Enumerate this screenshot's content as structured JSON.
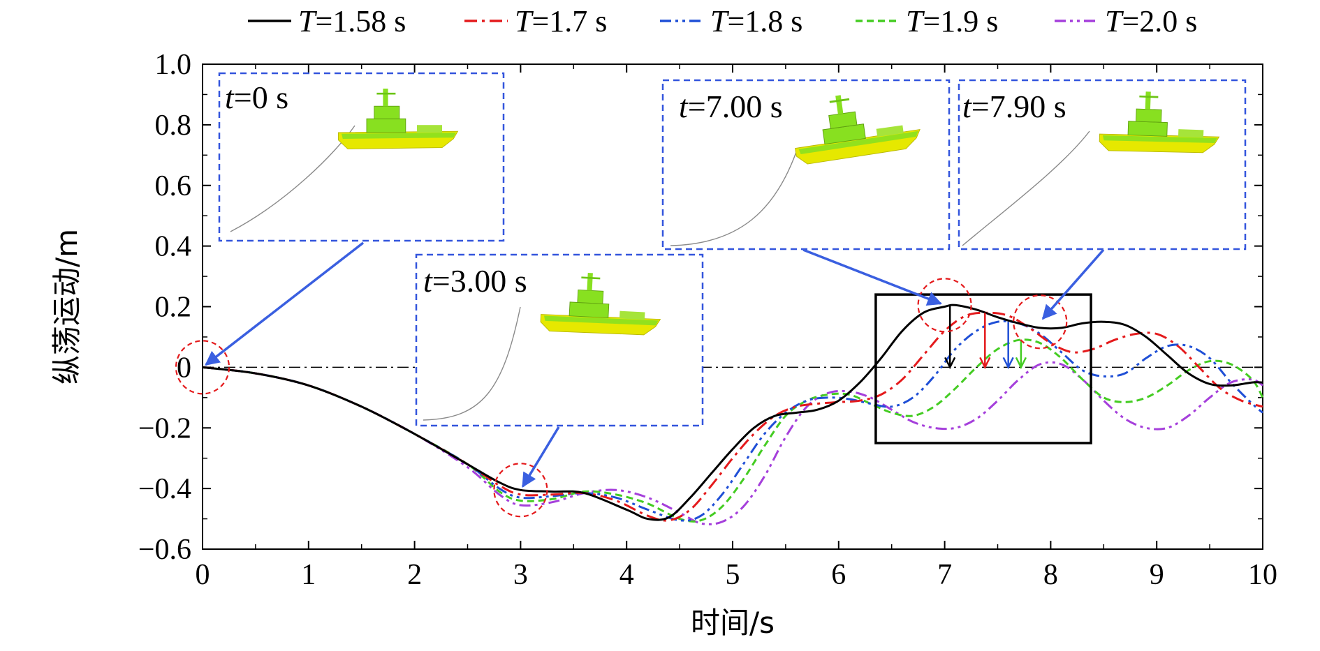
{
  "chart_data": {
    "type": "line",
    "xlabel": "时间/s",
    "ylabel": "纵荡运动/m",
    "xlim": [
      0,
      10
    ],
    "ylim": [
      -0.6,
      1.0
    ],
    "x_ticks": [
      0,
      1,
      2,
      3,
      4,
      5,
      6,
      7,
      8,
      9,
      10
    ],
    "y_ticks": [
      -0.6,
      -0.4,
      -0.2,
      0,
      0.2,
      0.4,
      0.6,
      0.8,
      1.0
    ],
    "y_tick_labels": [
      "−0.6",
      "−0.4",
      "−0.2",
      "0",
      "0.2",
      "0.4",
      "0.6",
      "0.8",
      "1.0"
    ],
    "grid": false,
    "legend_position": "top",
    "series": [
      {
        "name": "T=1.58 s",
        "name_var": "T",
        "name_rest": "=1.58 s",
        "color": "#000000",
        "dash": "solid",
        "x": [
          0,
          0.5,
          1,
          1.5,
          2,
          2.5,
          2.8,
          3,
          3.3,
          3.6,
          4,
          4.2,
          4.4,
          4.6,
          4.8,
          5,
          5.2,
          5.4,
          5.6,
          5.8,
          6,
          6.2,
          6.4,
          6.6,
          6.8,
          7,
          7.1,
          7.3,
          7.5,
          7.7,
          7.9,
          8.1,
          8.3,
          8.5,
          8.7,
          8.9,
          9.1,
          9.3,
          9.5,
          9.7,
          9.9,
          10
        ],
        "y": [
          0,
          -0.02,
          -0.06,
          -0.13,
          -0.22,
          -0.32,
          -0.38,
          -0.405,
          -0.41,
          -0.415,
          -0.47,
          -0.5,
          -0.495,
          -0.43,
          -0.35,
          -0.27,
          -0.2,
          -0.16,
          -0.15,
          -0.14,
          -0.11,
          -0.05,
          0.03,
          0.12,
          0.18,
          0.2,
          0.205,
          0.19,
          0.165,
          0.145,
          0.13,
          0.13,
          0.145,
          0.15,
          0.14,
          0.1,
          0.04,
          -0.02,
          -0.055,
          -0.06,
          -0.05,
          -0.05
        ]
      },
      {
        "name": "T=1.7 s",
        "name_var": "T",
        "name_rest": "=1.7 s",
        "color": "#e41a1c",
        "dash": "dashdot",
        "x": [
          0,
          0.5,
          1,
          1.5,
          2,
          2.5,
          2.8,
          3,
          3.3,
          3.6,
          3.9,
          4.2,
          4.4,
          4.6,
          4.8,
          5,
          5.2,
          5.4,
          5.6,
          5.8,
          6,
          6.2,
          6.4,
          6.6,
          6.8,
          7,
          7.2,
          7.4,
          7.6,
          7.8,
          8,
          8.2,
          8.4,
          8.6,
          8.8,
          9,
          9.2,
          9.4,
          9.6,
          9.8,
          10
        ],
        "y": [
          0,
          -0.02,
          -0.06,
          -0.13,
          -0.22,
          -0.32,
          -0.39,
          -0.42,
          -0.42,
          -0.415,
          -0.44,
          -0.49,
          -0.505,
          -0.47,
          -0.39,
          -0.3,
          -0.22,
          -0.16,
          -0.13,
          -0.12,
          -0.115,
          -0.11,
          -0.09,
          -0.04,
          0.04,
          0.12,
          0.17,
          0.18,
          0.17,
          0.13,
          0.08,
          0.05,
          0.06,
          0.09,
          0.11,
          0.11,
          0.07,
          0.0,
          -0.07,
          -0.11,
          -0.13
        ]
      },
      {
        "name": "T=1.8 s",
        "name_var": "T",
        "name_rest": "=1.8 s",
        "color": "#1f4fd6",
        "dash": "dashdotdot",
        "x": [
          0,
          0.5,
          1,
          1.5,
          2,
          2.5,
          2.8,
          3,
          3.3,
          3.6,
          3.9,
          4.2,
          4.5,
          4.7,
          4.9,
          5.1,
          5.3,
          5.5,
          5.7,
          5.9,
          6.1,
          6.3,
          6.5,
          6.7,
          6.9,
          7.1,
          7.3,
          7.5,
          7.7,
          7.9,
          8.1,
          8.3,
          8.5,
          8.7,
          8.9,
          9.1,
          9.3,
          9.5,
          9.7,
          9.9,
          10
        ],
        "y": [
          0,
          -0.02,
          -0.06,
          -0.13,
          -0.22,
          -0.32,
          -0.4,
          -0.43,
          -0.425,
          -0.415,
          -0.43,
          -0.47,
          -0.505,
          -0.49,
          -0.42,
          -0.32,
          -0.22,
          -0.15,
          -0.11,
          -0.1,
          -0.105,
          -0.12,
          -0.13,
          -0.1,
          -0.03,
          0.06,
          0.12,
          0.15,
          0.145,
          0.11,
          0.05,
          -0.01,
          -0.03,
          -0.02,
          0.03,
          0.07,
          0.07,
          0.03,
          -0.05,
          -0.12,
          -0.15
        ]
      },
      {
        "name": "T=1.9 s",
        "name_var": "T",
        "name_rest": "=1.9 s",
        "color": "#44cc22",
        "dash": "dashed",
        "x": [
          0,
          0.5,
          1,
          1.5,
          2,
          2.5,
          2.8,
          3,
          3.3,
          3.6,
          3.9,
          4.2,
          4.5,
          4.7,
          4.9,
          5.1,
          5.3,
          5.5,
          5.7,
          5.9,
          6.1,
          6.3,
          6.5,
          6.7,
          6.9,
          7.1,
          7.3,
          7.5,
          7.7,
          7.9,
          8.1,
          8.3,
          8.5,
          8.7,
          8.9,
          9.1,
          9.3,
          9.5,
          9.7,
          9.9,
          10
        ],
        "y": [
          0,
          -0.02,
          -0.06,
          -0.13,
          -0.22,
          -0.32,
          -0.41,
          -0.44,
          -0.435,
          -0.41,
          -0.42,
          -0.45,
          -0.5,
          -0.505,
          -0.46,
          -0.37,
          -0.26,
          -0.16,
          -0.11,
          -0.09,
          -0.09,
          -0.12,
          -0.15,
          -0.16,
          -0.13,
          -0.07,
          0.0,
          0.06,
          0.09,
          0.08,
          0.03,
          -0.04,
          -0.1,
          -0.115,
          -0.1,
          -0.06,
          -0.01,
          0.02,
          0.01,
          -0.04,
          -0.1
        ]
      },
      {
        "name": "T=2.0 s",
        "name_var": "T",
        "name_rest": "=2.0 s",
        "color": "#a53fdb",
        "dash": "dashdotdot",
        "x": [
          0,
          0.5,
          1,
          1.5,
          2,
          2.5,
          2.8,
          3,
          3.3,
          3.6,
          3.9,
          4.2,
          4.5,
          4.7,
          4.9,
          5.1,
          5.3,
          5.5,
          5.7,
          5.9,
          6.1,
          6.3,
          6.5,
          6.7,
          6.9,
          7.1,
          7.3,
          7.5,
          7.7,
          7.9,
          8.1,
          8.3,
          8.5,
          8.7,
          8.9,
          9.1,
          9.3,
          9.5,
          9.7,
          9.9,
          10
        ],
        "y": [
          0,
          -0.02,
          -0.06,
          -0.13,
          -0.22,
          -0.33,
          -0.42,
          -0.455,
          -0.445,
          -0.415,
          -0.405,
          -0.43,
          -0.48,
          -0.515,
          -0.51,
          -0.46,
          -0.36,
          -0.23,
          -0.13,
          -0.085,
          -0.08,
          -0.1,
          -0.14,
          -0.18,
          -0.2,
          -0.2,
          -0.17,
          -0.11,
          -0.04,
          0.01,
          0.01,
          -0.04,
          -0.11,
          -0.17,
          -0.2,
          -0.2,
          -0.16,
          -0.1,
          -0.05,
          -0.04,
          -0.06
        ]
      }
    ],
    "zero_line": {
      "y": 0,
      "color": "#000000"
    },
    "snapshots": [
      {
        "label_var": "t",
        "label_rest": "=0 s",
        "time": 0
      },
      {
        "label_var": "t",
        "label_rest": "=3.00 s",
        "time": 3.0
      },
      {
        "label_var": "t",
        "label_rest": "=7.00 s",
        "time": 7.0
      },
      {
        "label_var": "t",
        "label_rest": "=7.90 s",
        "time": 7.9
      }
    ],
    "highlight_box": {
      "x": [
        6.35,
        8.38
      ],
      "y": [
        -0.25,
        0.24
      ]
    },
    "peak_arrows": [
      {
        "x": 7.05,
        "y_top": 0.205,
        "color": "#000000"
      },
      {
        "x": 7.38,
        "y_top": 0.18,
        "color": "#e41a1c"
      },
      {
        "x": 7.6,
        "y_top": 0.15,
        "color": "#1f4fd6"
      },
      {
        "x": 7.72,
        "y_top": 0.09,
        "color": "#44cc22"
      }
    ],
    "colors": {
      "snapshot_box": "#3355dd",
      "pointer_arrow": "#3a5fe0",
      "marker_circle": "#e41a1c",
      "ship_hull": "#e6e800",
      "ship_deck": "#88e020"
    }
  }
}
